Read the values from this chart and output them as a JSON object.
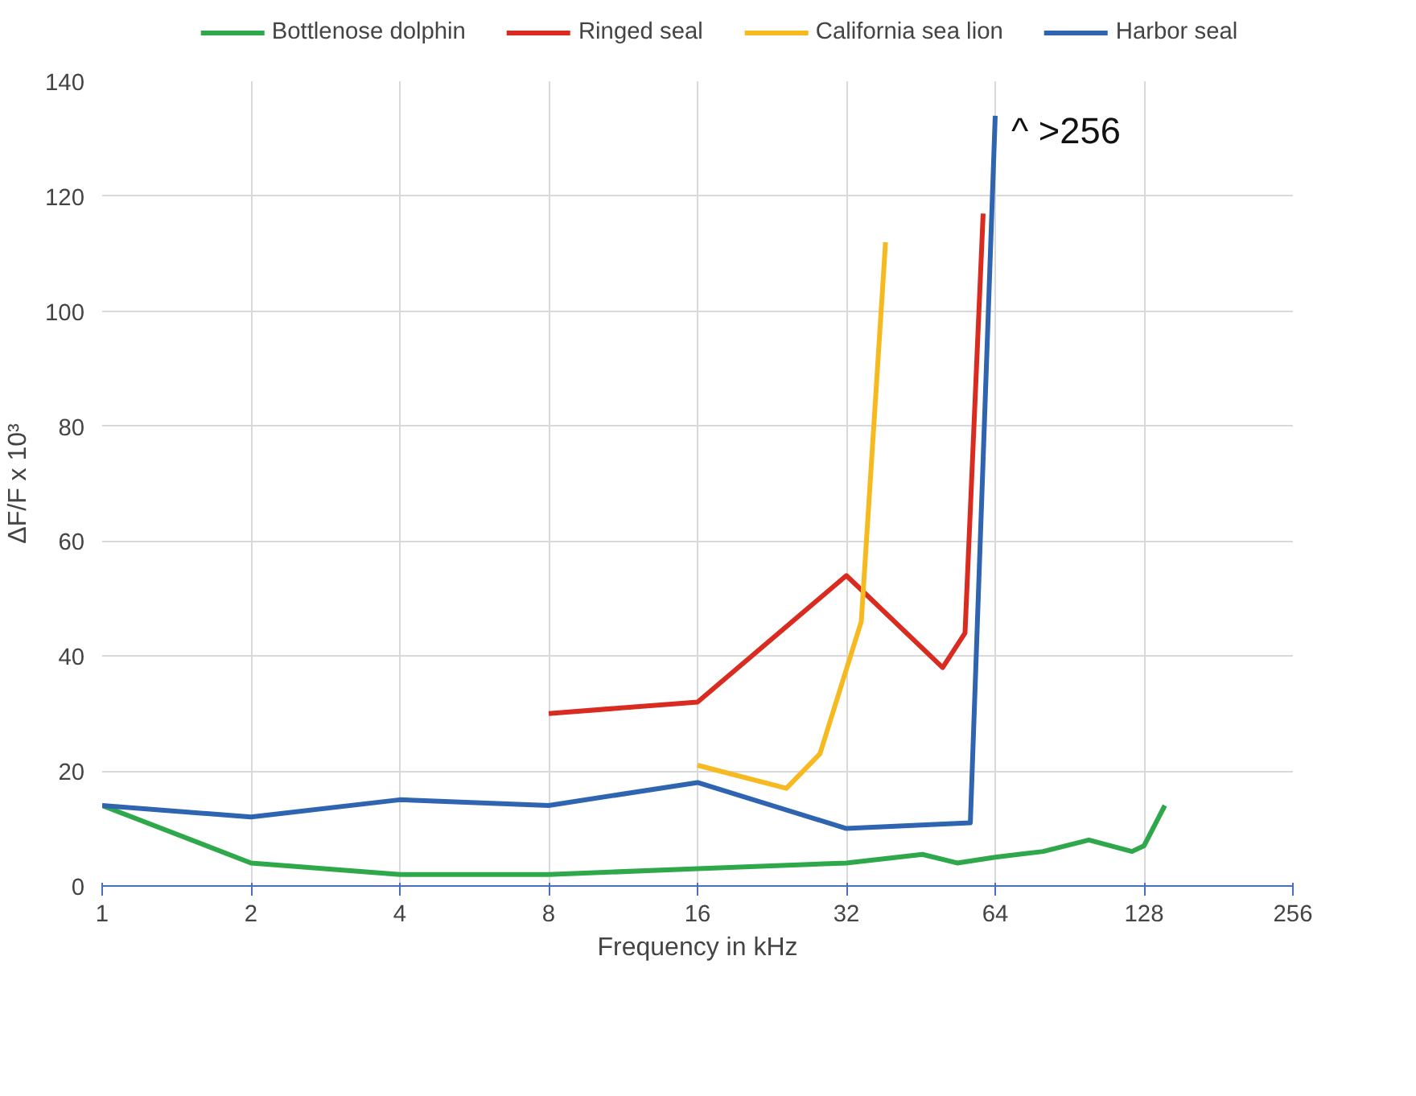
{
  "chart_data": {
    "type": "line",
    "xlabel": "Frequency in kHz",
    "ylabel": "ΔF/F x 10³",
    "xlim": [
      1,
      256
    ],
    "xticks": [
      1,
      2,
      4,
      8,
      16,
      32,
      64,
      128,
      256
    ],
    "ylim": [
      0,
      140
    ],
    "yticks": [
      0,
      20,
      40,
      60,
      80,
      100,
      120,
      140
    ],
    "log": "x",
    "grid": true,
    "legend": "top",
    "line_style": "solid",
    "marker": "none",
    "series": [
      {
        "name": "Bottlenose dolphin",
        "color": "#2ea84a",
        "x": [
          1,
          2,
          4,
          5.7,
          8,
          16,
          32,
          45.6,
          53.6,
          64,
          80,
          99,
          121,
          128,
          141
        ],
        "values": [
          14,
          4,
          2,
          2,
          2,
          3,
          4,
          5.5,
          4,
          5,
          6,
          8,
          6,
          7,
          14
        ]
      },
      {
        "name": "Ringed seal",
        "color": "#d92b20",
        "x": [
          8,
          16,
          32,
          50.1,
          55.6,
          60.5
        ],
        "values": [
          30,
          32,
          54,
          38,
          44,
          117
        ]
      },
      {
        "name": "California sea lion",
        "color": "#f6b920",
        "x": [
          16,
          24.2,
          28.3,
          34.3,
          38.4
        ],
        "values": [
          21,
          17,
          23,
          46,
          112
        ]
      },
      {
        "name": "Harbor seal",
        "color": "#2e64b0",
        "x": [
          1,
          2,
          4,
          8,
          16,
          32,
          57,
          64
        ],
        "values": [
          14,
          12,
          15,
          14,
          18,
          10,
          11,
          134
        ]
      }
    ],
    "annotations": [
      {
        "text": "^ >256",
        "x": 64,
        "y": 134
      }
    ]
  }
}
